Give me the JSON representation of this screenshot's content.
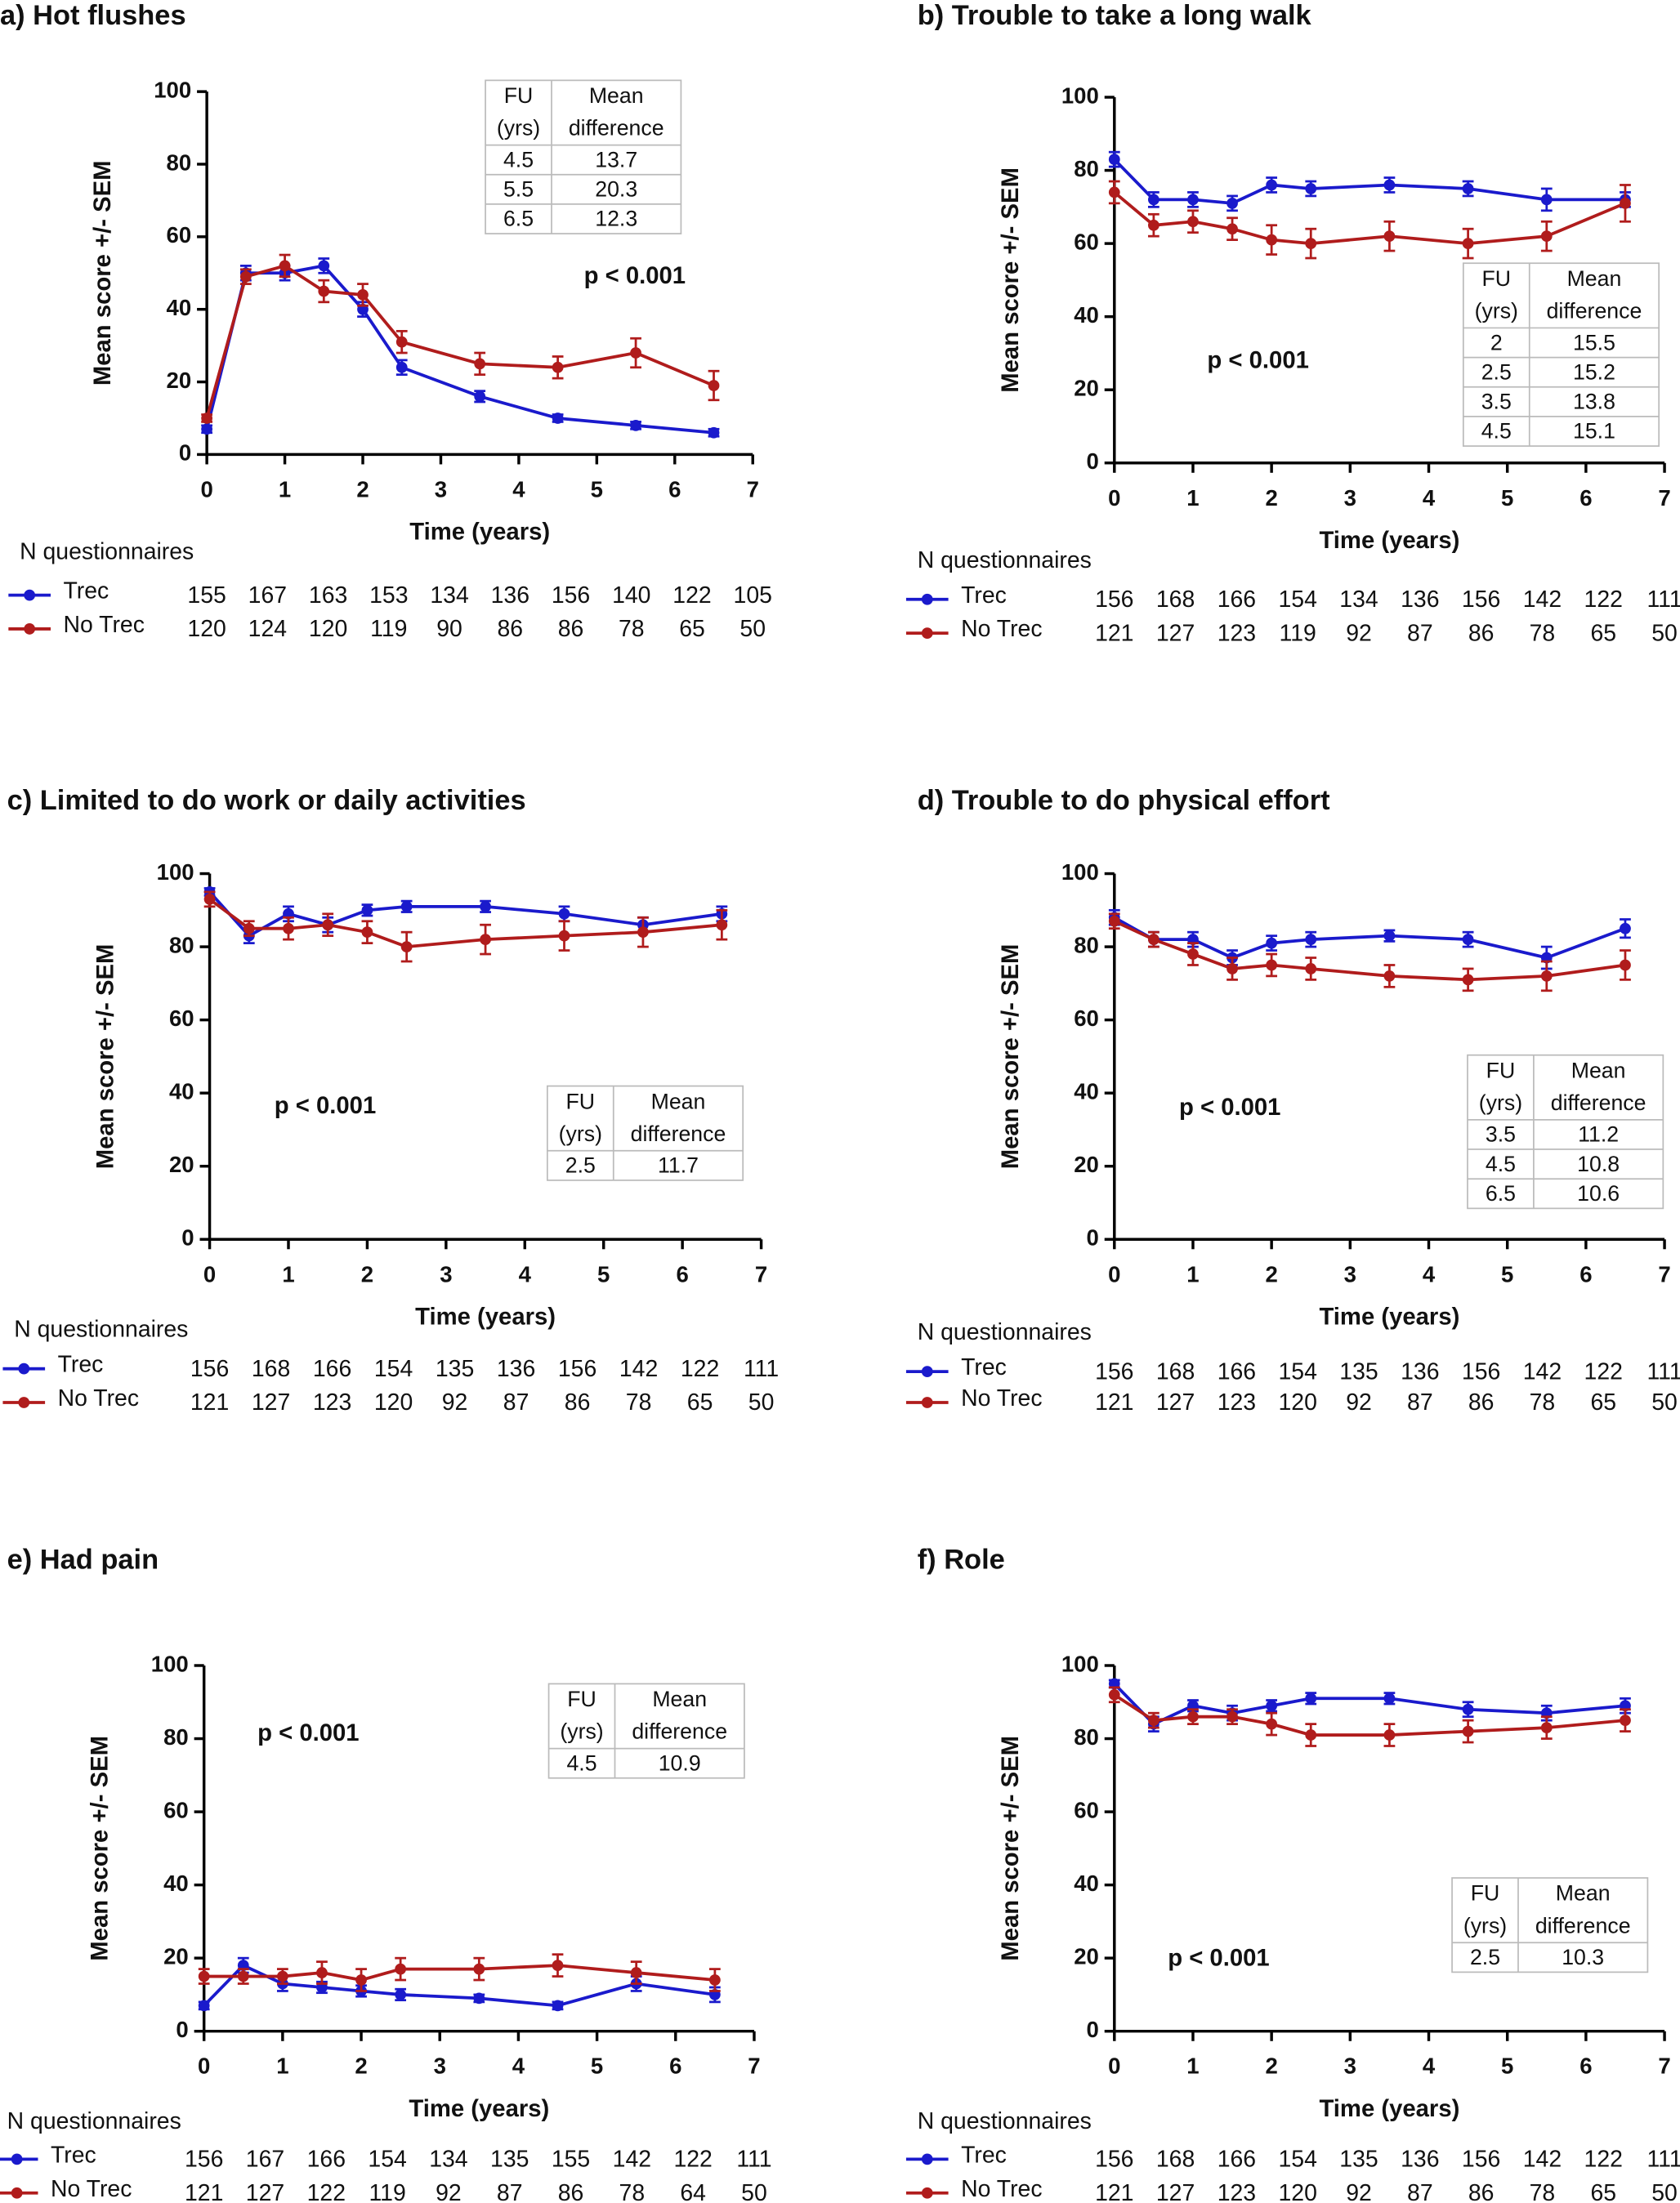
{
  "chart_data": [
    {
      "type": "line",
      "title": "a) Hot flushes",
      "xlabel": "Time (years)",
      "ylabel": "Mean score +/- SEM",
      "x": [
        0,
        0.5,
        1,
        1.5,
        2,
        2.5,
        3.5,
        4.5,
        5.5,
        6.5
      ],
      "xlim": [
        0,
        7
      ],
      "ylim": [
        0,
        100
      ],
      "xticks": [
        0,
        1,
        2,
        3,
        4,
        5,
        6,
        7
      ],
      "yticks": [
        0,
        20,
        40,
        60,
        80,
        100
      ],
      "series": [
        {
          "name": "Trec",
          "color": "#1a1acc",
          "values": [
            7,
            50,
            50,
            52,
            40,
            24,
            16,
            10,
            8,
            6
          ],
          "errors": [
            1,
            2,
            2,
            2,
            2,
            2,
            1.5,
            1,
            1,
            1
          ],
          "n": [
            155,
            167,
            163,
            153,
            134,
            136,
            156,
            140,
            122,
            105
          ]
        },
        {
          "name": "No Trec",
          "color": "#b01c1c",
          "values": [
            10,
            49,
            52,
            45,
            44,
            31,
            25,
            24,
            28,
            19
          ],
          "errors": [
            1,
            2,
            3,
            3,
            3,
            3,
            3,
            3,
            4,
            4
          ],
          "n": [
            120,
            124,
            120,
            119,
            90,
            86,
            86,
            78,
            65,
            50
          ]
        }
      ],
      "annotation": "p < 0.001",
      "n_label": "N questionnaires",
      "table": {
        "header": [
          [
            "FU",
            "(yrs)"
          ],
          [
            "Mean",
            "difference"
          ]
        ],
        "rows": [
          [
            "4.5",
            "13.7"
          ],
          [
            "5.5",
            "20.3"
          ],
          [
            "6.5",
            "12.3"
          ]
        ]
      }
    },
    {
      "type": "line",
      "title": "b) Trouble to take a long walk",
      "xlabel": "Time (years)",
      "ylabel": "Mean score +/- SEM",
      "x": [
        0,
        0.5,
        1,
        1.5,
        2,
        2.5,
        3.5,
        4.5,
        5.5,
        6.5
      ],
      "xlim": [
        0,
        7
      ],
      "ylim": [
        0,
        100
      ],
      "xticks": [
        0,
        1,
        2,
        3,
        4,
        5,
        6,
        7
      ],
      "yticks": [
        0,
        20,
        40,
        60,
        80,
        100
      ],
      "series": [
        {
          "name": "Trec",
          "color": "#1a1acc",
          "values": [
            83,
            72,
            72,
            71,
            76,
            75,
            76,
            75,
            72,
            72
          ],
          "errors": [
            2,
            2,
            2,
            2,
            2,
            2,
            2,
            2,
            3,
            2
          ],
          "n": [
            156,
            168,
            166,
            154,
            134,
            136,
            156,
            142,
            122,
            111
          ]
        },
        {
          "name": "No Trec",
          "color": "#b01c1c",
          "values": [
            74,
            65,
            66,
            64,
            61,
            60,
            62,
            60,
            62,
            71
          ],
          "errors": [
            3,
            3,
            3,
            3,
            4,
            4,
            4,
            4,
            4,
            5
          ],
          "n": [
            121,
            127,
            123,
            119,
            92,
            87,
            86,
            78,
            65,
            50
          ]
        }
      ],
      "annotation": "p < 0.001",
      "n_label": "N questionnaires",
      "table": {
        "header": [
          [
            "FU",
            "(yrs)"
          ],
          [
            "Mean",
            "difference"
          ]
        ],
        "rows": [
          [
            "2",
            "15.5"
          ],
          [
            "2.5",
            "15.2"
          ],
          [
            "3.5",
            "13.8"
          ],
          [
            "4.5",
            "15.1"
          ]
        ]
      }
    },
    {
      "type": "line",
      "title": "c) Limited to do work or daily activities",
      "xlabel": "Time (years)",
      "ylabel": "Mean score +/- SEM",
      "x": [
        0,
        0.5,
        1,
        1.5,
        2,
        2.5,
        3.5,
        4.5,
        5.5,
        6.5
      ],
      "xlim": [
        0,
        7
      ],
      "ylim": [
        0,
        100
      ],
      "xticks": [
        0,
        1,
        2,
        3,
        4,
        5,
        6,
        7
      ],
      "yticks": [
        0,
        20,
        40,
        60,
        80,
        100
      ],
      "series": [
        {
          "name": "Trec",
          "color": "#1a1acc",
          "values": [
            95,
            83,
            89,
            86,
            90,
            91,
            91,
            89,
            86,
            89
          ],
          "errors": [
            1,
            2,
            2,
            2,
            1.5,
            1.5,
            1.5,
            2,
            2,
            2
          ],
          "n": [
            156,
            168,
            166,
            154,
            135,
            136,
            156,
            142,
            122,
            111
          ]
        },
        {
          "name": "No Trec",
          "color": "#b01c1c",
          "values": [
            93,
            85,
            85,
            86,
            84,
            80,
            82,
            83,
            84,
            86
          ],
          "errors": [
            2,
            2,
            3,
            3,
            3,
            4,
            4,
            4,
            4,
            4
          ],
          "n": [
            121,
            127,
            123,
            120,
            92,
            87,
            86,
            78,
            65,
            50
          ]
        }
      ],
      "annotation": "p < 0.001",
      "n_label": "N questionnaires",
      "table": {
        "header": [
          [
            "FU",
            "(yrs)"
          ],
          [
            "Mean",
            "difference"
          ]
        ],
        "rows": [
          [
            "2.5",
            "11.7"
          ]
        ]
      }
    },
    {
      "type": "line",
      "title": "d) Trouble to do physical effort",
      "xlabel": "Time (years)",
      "ylabel": "Mean score +/- SEM",
      "x": [
        0,
        0.5,
        1,
        1.5,
        2,
        2.5,
        3.5,
        4.5,
        5.5,
        6.5
      ],
      "xlim": [
        0,
        7
      ],
      "ylim": [
        0,
        100
      ],
      "xticks": [
        0,
        1,
        2,
        3,
        4,
        5,
        6,
        7
      ],
      "yticks": [
        0,
        20,
        40,
        60,
        80,
        100
      ],
      "series": [
        {
          "name": "Trec",
          "color": "#1a1acc",
          "values": [
            88,
            82,
            82,
            77,
            81,
            82,
            83,
            82,
            77,
            85
          ],
          "errors": [
            2,
            2,
            2,
            2,
            2,
            2,
            1.5,
            2,
            3,
            2.5
          ],
          "n": [
            156,
            168,
            166,
            154,
            135,
            136,
            156,
            142,
            122,
            111
          ]
        },
        {
          "name": "No Trec",
          "color": "#b01c1c",
          "values": [
            87,
            82,
            78,
            74,
            75,
            74,
            72,
            71,
            72,
            75
          ],
          "errors": [
            2,
            2,
            3,
            3,
            3,
            3,
            3,
            3,
            4,
            4
          ],
          "n": [
            121,
            127,
            123,
            120,
            92,
            87,
            86,
            78,
            65,
            50
          ]
        }
      ],
      "annotation": "p < 0.001",
      "n_label": "N questionnaires",
      "table": {
        "header": [
          [
            "FU",
            "(yrs)"
          ],
          [
            "Mean",
            "difference"
          ]
        ],
        "rows": [
          [
            "3.5",
            "11.2"
          ],
          [
            "4.5",
            "10.8"
          ],
          [
            "6.5",
            "10.6"
          ]
        ]
      }
    },
    {
      "type": "line",
      "title": "e) Had pain",
      "xlabel": "Time (years)",
      "ylabel": "Mean score +/- SEM",
      "x": [
        0,
        0.5,
        1,
        1.5,
        2,
        2.5,
        3.5,
        4.5,
        5.5,
        6.5
      ],
      "xlim": [
        0,
        7
      ],
      "ylim": [
        0,
        100
      ],
      "xticks": [
        0,
        1,
        2,
        3,
        4,
        5,
        6,
        7
      ],
      "yticks": [
        0,
        20,
        40,
        60,
        80,
        100
      ],
      "series": [
        {
          "name": "Trec",
          "color": "#1a1acc",
          "values": [
            7,
            18,
            13,
            12,
            11,
            10,
            9,
            7,
            13,
            10
          ],
          "errors": [
            1,
            2,
            2,
            1.5,
            1.5,
            1.5,
            1,
            1,
            2,
            2
          ],
          "n": [
            156,
            167,
            166,
            154,
            134,
            135,
            155,
            142,
            122,
            111
          ]
        },
        {
          "name": "No Trec",
          "color": "#b01c1c",
          "values": [
            15,
            15,
            15,
            16,
            14,
            17,
            17,
            18,
            16,
            14
          ],
          "errors": [
            2,
            2,
            2,
            3,
            3,
            3,
            3,
            3,
            3,
            3
          ],
          "n": [
            121,
            127,
            122,
            119,
            92,
            87,
            86,
            78,
            64,
            50
          ]
        }
      ],
      "annotation": "p < 0.001",
      "n_label": "N questionnaires",
      "table": {
        "header": [
          [
            "FU",
            "(yrs)"
          ],
          [
            "Mean",
            "difference"
          ]
        ],
        "rows": [
          [
            "4.5",
            "10.9"
          ]
        ]
      }
    },
    {
      "type": "line",
      "title": "f) Role",
      "xlabel": "Time (years)",
      "ylabel": "Mean score +/- SEM",
      "x": [
        0,
        0.5,
        1,
        1.5,
        2,
        2.5,
        3.5,
        4.5,
        5.5,
        6.5
      ],
      "xlim": [
        0,
        7
      ],
      "ylim": [
        0,
        100
      ],
      "xticks": [
        0,
        1,
        2,
        3,
        4,
        5,
        6,
        7
      ],
      "yticks": [
        0,
        20,
        40,
        60,
        80,
        100
      ],
      "series": [
        {
          "name": "Trec",
          "color": "#1a1acc",
          "values": [
            95,
            84,
            89,
            87,
            89,
            91,
            91,
            88,
            87,
            89
          ],
          "errors": [
            1,
            2,
            1.5,
            2,
            1.5,
            1.5,
            1.5,
            2,
            2,
            2
          ],
          "n": [
            156,
            168,
            166,
            154,
            135,
            136,
            156,
            142,
            122,
            111
          ]
        },
        {
          "name": "No Trec",
          "color": "#b01c1c",
          "values": [
            92,
            85,
            86,
            86,
            84,
            81,
            81,
            82,
            83,
            85
          ],
          "errors": [
            2,
            2,
            2,
            2,
            3,
            3,
            3,
            3,
            3,
            3
          ],
          "n": [
            121,
            127,
            123,
            120,
            92,
            87,
            86,
            78,
            65,
            50
          ]
        }
      ],
      "annotation": "p < 0.001",
      "n_label": "N questionnaires",
      "table": {
        "header": [
          [
            "FU",
            "(yrs)"
          ],
          [
            "Mean",
            "difference"
          ]
        ],
        "rows": [
          [
            "2.5",
            "10.3"
          ]
        ]
      }
    }
  ]
}
